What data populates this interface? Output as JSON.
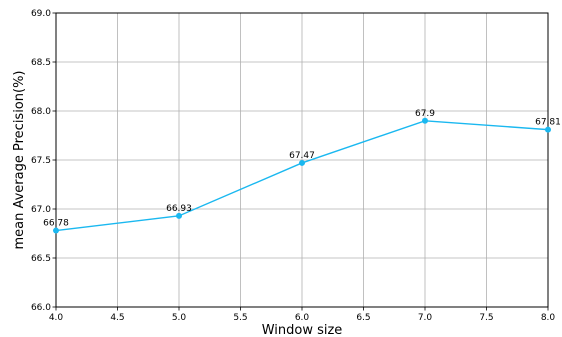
{
  "chart_data": {
    "type": "line",
    "title": "",
    "xlabel": "Window size",
    "ylabel": "mean Average Precision(%)",
    "xlim": [
      4.0,
      8.0
    ],
    "ylim": [
      66.0,
      69.0
    ],
    "xticks": [
      "4.0",
      "4.5",
      "5.0",
      "5.5",
      "6.0",
      "6.5",
      "7.0",
      "7.5",
      "8.0"
    ],
    "yticks": [
      "66.0",
      "66.5",
      "67.0",
      "67.5",
      "68.0",
      "68.5",
      "69.0"
    ],
    "grid": true,
    "series": [
      {
        "color": "#1ab8f0",
        "marker": "circle",
        "x": [
          4.0,
          5.0,
          6.0,
          7.0,
          8.0
        ],
        "y": [
          66.78,
          66.93,
          67.47,
          67.9,
          67.81
        ],
        "labels": [
          "66.78",
          "66.93",
          "67.47",
          "67.9",
          "67.81"
        ]
      }
    ]
  }
}
